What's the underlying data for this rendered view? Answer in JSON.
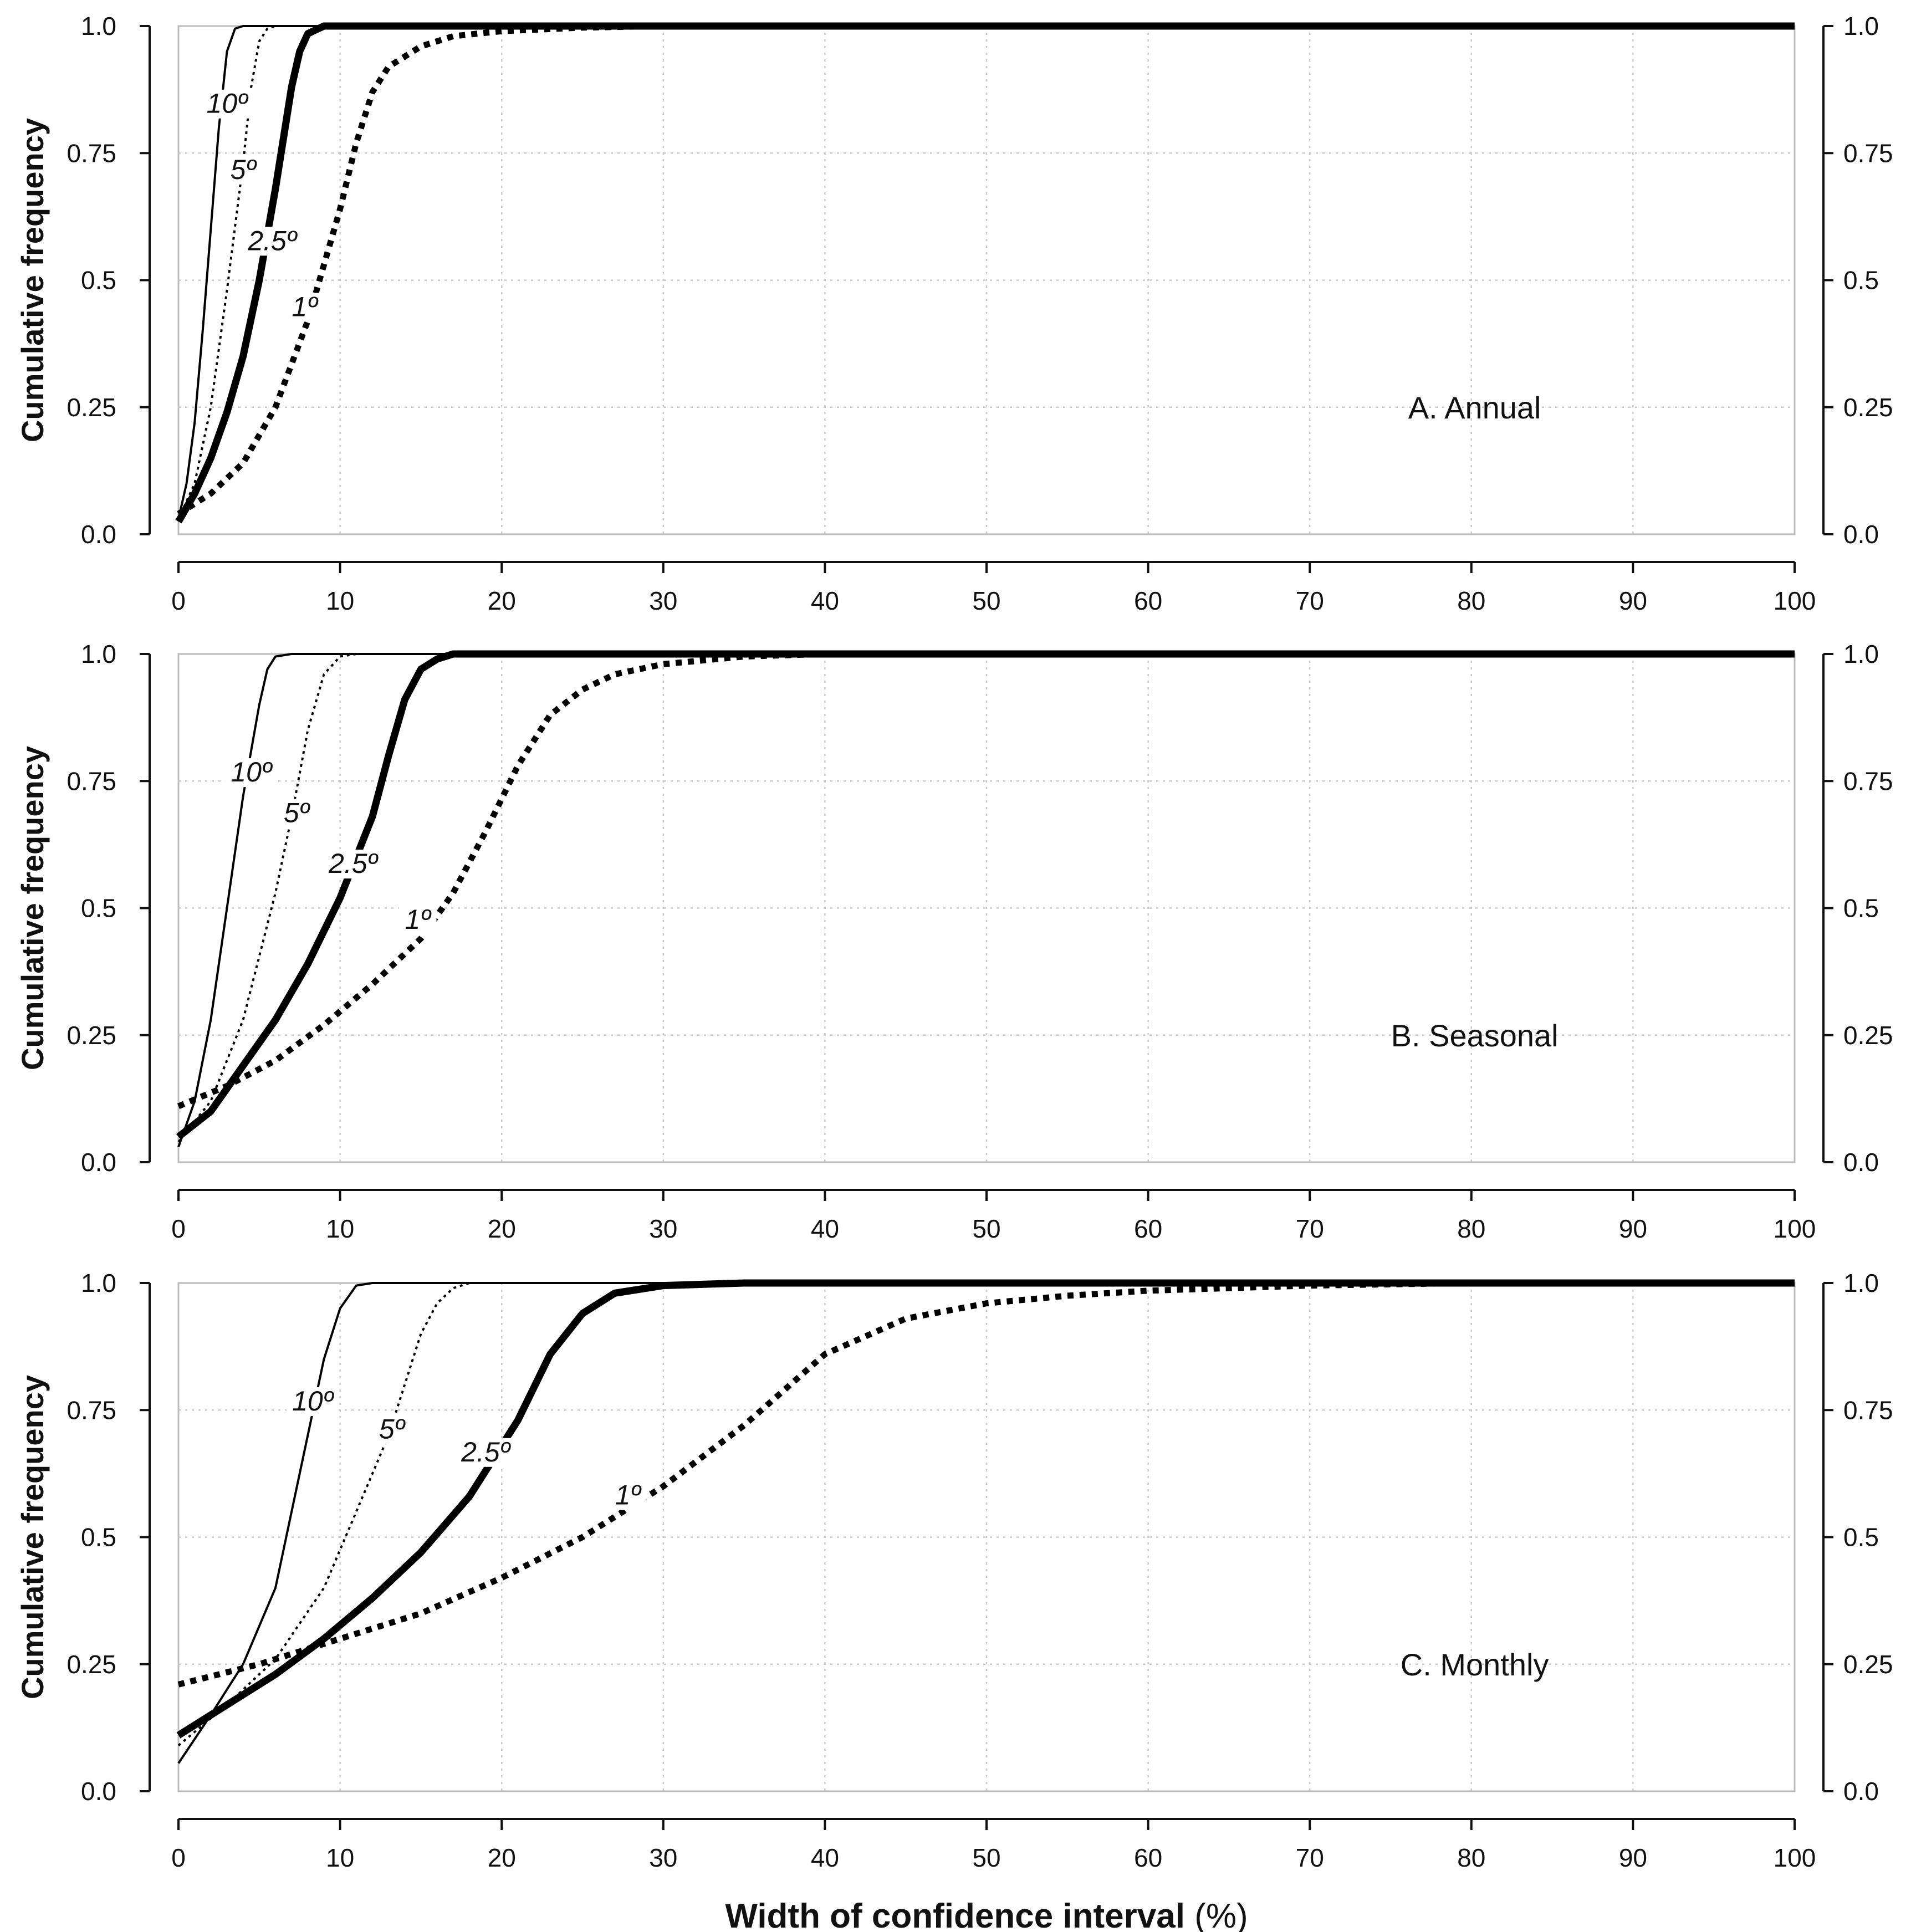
{
  "chart_data": [
    {
      "type": "line",
      "panel_label": "A. Annual",
      "ylabel": "Cumulative  frequency",
      "xlabel": "",
      "xlim": [
        0,
        100
      ],
      "ylim": [
        0,
        1
      ],
      "xticks": [
        "0",
        "10",
        "20",
        "30",
        "40",
        "50",
        "60",
        "70",
        "80",
        "90",
        "100"
      ],
      "yticks": [
        "0.0",
        "0.25",
        "0.5",
        "0.75",
        "1.0"
      ],
      "grid": true,
      "series": [
        {
          "name": "10º",
          "label_at": [
            3,
            0.84
          ],
          "points": [
            [
              0,
              0.03
            ],
            [
              0.5,
              0.1
            ],
            [
              1,
              0.22
            ],
            [
              1.5,
              0.4
            ],
            [
              2,
              0.6
            ],
            [
              2.5,
              0.8
            ],
            [
              3,
              0.95
            ],
            [
              3.5,
              0.995
            ],
            [
              4,
              1.0
            ],
            [
              100,
              1.0
            ]
          ]
        },
        {
          "name": "5º",
          "label_at": [
            4,
            0.71
          ],
          "points": [
            [
              0,
              0.03
            ],
            [
              1,
              0.1
            ],
            [
              2,
              0.25
            ],
            [
              3,
              0.48
            ],
            [
              4,
              0.73
            ],
            [
              4.5,
              0.88
            ],
            [
              5,
              0.97
            ],
            [
              5.5,
              0.995
            ],
            [
              6,
              1.0
            ],
            [
              100,
              1.0
            ]
          ]
        },
        {
          "name": "2.5º",
          "label_at": [
            5.8,
            0.57
          ],
          "points": [
            [
              0,
              0.025
            ],
            [
              1,
              0.08
            ],
            [
              2,
              0.15
            ],
            [
              3,
              0.24
            ],
            [
              4,
              0.35
            ],
            [
              5,
              0.5
            ],
            [
              6,
              0.68
            ],
            [
              7,
              0.88
            ],
            [
              7.5,
              0.95
            ],
            [
              8,
              0.985
            ],
            [
              9,
              1.0
            ],
            [
              100,
              1.0
            ]
          ]
        },
        {
          "name": "1º",
          "label_at": [
            7.8,
            0.44
          ],
          "points": [
            [
              0,
              0.04
            ],
            [
              2,
              0.08
            ],
            [
              4,
              0.14
            ],
            [
              6,
              0.25
            ],
            [
              8,
              0.42
            ],
            [
              10,
              0.64
            ],
            [
              11,
              0.77
            ],
            [
              12,
              0.87
            ],
            [
              13,
              0.92
            ],
            [
              15,
              0.96
            ],
            [
              17,
              0.98
            ],
            [
              20,
              0.99
            ],
            [
              25,
              0.997
            ],
            [
              30,
              1.0
            ],
            [
              100,
              1.0
            ]
          ]
        }
      ]
    },
    {
      "type": "line",
      "panel_label": "B. Seasonal",
      "ylabel": "Cumulative  frequency",
      "xlabel": "",
      "xlim": [
        0,
        100
      ],
      "ylim": [
        0,
        1
      ],
      "xticks": [
        "0",
        "10",
        "20",
        "30",
        "40",
        "50",
        "60",
        "70",
        "80",
        "90",
        "100"
      ],
      "yticks": [
        "0.0",
        "0.25",
        "0.5",
        "0.75",
        "1.0"
      ],
      "grid": true,
      "series": [
        {
          "name": "10º",
          "label_at": [
            4.5,
            0.76
          ],
          "points": [
            [
              0,
              0.03
            ],
            [
              1,
              0.12
            ],
            [
              2,
              0.28
            ],
            [
              3,
              0.5
            ],
            [
              4,
              0.72
            ],
            [
              5,
              0.9
            ],
            [
              5.5,
              0.97
            ],
            [
              6,
              0.995
            ],
            [
              7,
              1.0
            ],
            [
              100,
              1.0
            ]
          ]
        },
        {
          "name": "5º",
          "label_at": [
            7.3,
            0.68
          ],
          "points": [
            [
              0,
              0.04
            ],
            [
              2,
              0.12
            ],
            [
              4,
              0.28
            ],
            [
              6,
              0.53
            ],
            [
              7,
              0.68
            ],
            [
              8,
              0.85
            ],
            [
              9,
              0.96
            ],
            [
              10,
              0.995
            ],
            [
              11,
              1.0
            ],
            [
              100,
              1.0
            ]
          ]
        },
        {
          "name": "2.5º",
          "label_at": [
            10.8,
            0.58
          ],
          "points": [
            [
              0,
              0.05
            ],
            [
              2,
              0.1
            ],
            [
              4,
              0.19
            ],
            [
              6,
              0.28
            ],
            [
              8,
              0.39
            ],
            [
              10,
              0.52
            ],
            [
              12,
              0.68
            ],
            [
              13,
              0.8
            ],
            [
              14,
              0.91
            ],
            [
              15,
              0.97
            ],
            [
              16,
              0.99
            ],
            [
              17,
              1.0
            ],
            [
              100,
              1.0
            ]
          ]
        },
        {
          "name": "1º",
          "label_at": [
            14.8,
            0.47
          ],
          "points": [
            [
              0,
              0.11
            ],
            [
              3,
              0.15
            ],
            [
              6,
              0.2
            ],
            [
              9,
              0.27
            ],
            [
              12,
              0.35
            ],
            [
              15,
              0.44
            ],
            [
              17,
              0.53
            ],
            [
              19,
              0.65
            ],
            [
              21,
              0.78
            ],
            [
              23,
              0.88
            ],
            [
              25,
              0.93
            ],
            [
              27,
              0.96
            ],
            [
              30,
              0.98
            ],
            [
              35,
              0.995
            ],
            [
              40,
              1.0
            ],
            [
              100,
              1.0
            ]
          ]
        }
      ]
    },
    {
      "type": "line",
      "panel_label": "C. Monthly",
      "ylabel": "Cumulative  frequency",
      "xlabel": "Width of confidence interval (%)",
      "xlabel_bold": "Width of confidence interval",
      "xlabel_unit": "(%)",
      "xlim": [
        0,
        100
      ],
      "ylim": [
        0,
        1
      ],
      "xticks": [
        "0",
        "10",
        "20",
        "30",
        "40",
        "50",
        "60",
        "70",
        "80",
        "90",
        "100"
      ],
      "yticks": [
        "0.0",
        "0.25",
        "0.5",
        "0.75",
        "1.0"
      ],
      "grid": true,
      "series": [
        {
          "name": "10º",
          "label_at": [
            8.3,
            0.76
          ],
          "points": [
            [
              0,
              0.055
            ],
            [
              2,
              0.15
            ],
            [
              4,
              0.25
            ],
            [
              6,
              0.4
            ],
            [
              7,
              0.55
            ],
            [
              8,
              0.7
            ],
            [
              9,
              0.85
            ],
            [
              10,
              0.95
            ],
            [
              11,
              0.995
            ],
            [
              12,
              1.0
            ],
            [
              100,
              1.0
            ]
          ]
        },
        {
          "name": "5º",
          "label_at": [
            13.2,
            0.705
          ],
          "points": [
            [
              0,
              0.09
            ],
            [
              3,
              0.17
            ],
            [
              6,
              0.26
            ],
            [
              9,
              0.4
            ],
            [
              11,
              0.55
            ],
            [
              13,
              0.7
            ],
            [
              14,
              0.8
            ],
            [
              15,
              0.9
            ],
            [
              16,
              0.96
            ],
            [
              17,
              0.99
            ],
            [
              18,
              1.0
            ],
            [
              100,
              1.0
            ]
          ]
        },
        {
          "name": "2.5º",
          "label_at": [
            19,
            0.66
          ],
          "points": [
            [
              0,
              0.11
            ],
            [
              3,
              0.17
            ],
            [
              6,
              0.23
            ],
            [
              9,
              0.3
            ],
            [
              12,
              0.38
            ],
            [
              15,
              0.47
            ],
            [
              18,
              0.58
            ],
            [
              21,
              0.73
            ],
            [
              23,
              0.86
            ],
            [
              25,
              0.94
            ],
            [
              27,
              0.98
            ],
            [
              30,
              0.995
            ],
            [
              35,
              1.0
            ],
            [
              100,
              1.0
            ]
          ]
        },
        {
          "name": "1º",
          "label_at": [
            27.8,
            0.575
          ],
          "points": [
            [
              0,
              0.21
            ],
            [
              5,
              0.25
            ],
            [
              10,
              0.3
            ],
            [
              15,
              0.35
            ],
            [
              20,
              0.42
            ],
            [
              25,
              0.5
            ],
            [
              30,
              0.6
            ],
            [
              35,
              0.72
            ],
            [
              40,
              0.86
            ],
            [
              45,
              0.93
            ],
            [
              50,
              0.96
            ],
            [
              55,
              0.975
            ],
            [
              60,
              0.985
            ],
            [
              70,
              0.995
            ],
            [
              80,
              1.0
            ],
            [
              100,
              1.0
            ]
          ]
        }
      ]
    }
  ]
}
